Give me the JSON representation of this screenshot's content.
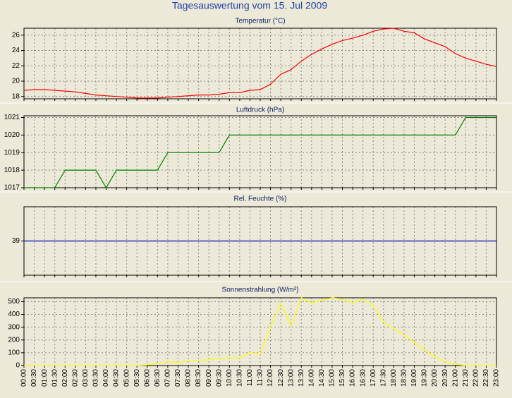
{
  "title": "Tagesauswertung vom 15. Jul 2009",
  "chart_data": [
    {
      "type": "line",
      "title": "Temperatur (°C)",
      "color": "#ff0000",
      "values": [
        18.8,
        18.9,
        18.9,
        18.8,
        18.7,
        18.6,
        18.4,
        18.2,
        18.1,
        18.0,
        17.9,
        17.8,
        17.8,
        17.8,
        17.9,
        18.0,
        18.1,
        18.2,
        18.2,
        18.3,
        18.5,
        18.5,
        18.8,
        18.9,
        19.6,
        20.9,
        21.5,
        22.6,
        23.5,
        24.2,
        24.8,
        25.3,
        25.6,
        26.0,
        26.5,
        26.8,
        26.9,
        26.5,
        26.3,
        25.5,
        25.0,
        24.5,
        23.6,
        23.0,
        22.6,
        22.2,
        21.9
      ],
      "ylim": [
        17.7,
        26.9
      ],
      "yticks": [
        18,
        20,
        22,
        24,
        26
      ],
      "grid": true
    },
    {
      "type": "line",
      "title": "Luftdruck (hPa)",
      "color": "#008000",
      "values": [
        1017,
        1017,
        1017,
        1017,
        1018,
        1018,
        1018,
        1018,
        1017,
        1018,
        1018,
        1018,
        1018,
        1018,
        1019,
        1019,
        1019,
        1019,
        1019,
        1019,
        1020,
        1020,
        1020,
        1020,
        1020,
        1020,
        1020,
        1020,
        1020,
        1020,
        1020,
        1020,
        1020,
        1020,
        1020,
        1020,
        1020,
        1020,
        1020,
        1020,
        1020,
        1020,
        1020,
        1021,
        1021,
        1021,
        1021
      ],
      "ylim": [
        1017,
        1021.1
      ],
      "yticks": [
        1017,
        1018,
        1019,
        1020,
        1021
      ],
      "grid": true
    },
    {
      "type": "line",
      "title": "Rel. Feuchte (%)",
      "color": "#0000c0",
      "values": [
        39,
        39,
        39,
        39,
        39,
        39,
        39,
        39,
        39,
        39,
        39,
        39,
        39,
        39,
        39,
        39,
        39,
        39,
        39,
        39,
        39,
        39,
        39,
        39,
        39,
        39,
        39,
        39,
        39,
        39,
        39,
        39,
        39,
        39,
        39,
        39,
        39,
        39,
        39,
        39,
        39,
        39,
        39,
        39,
        39,
        39,
        39
      ],
      "ylim": [
        38,
        40
      ],
      "yticks": [
        39
      ],
      "grid": true
    },
    {
      "type": "line",
      "title": "Sonnenstrahlung (W/m²)",
      "color": "#ffff00",
      "categories": [
        "00:00",
        "00:30",
        "01:00",
        "01:30",
        "02:00",
        "02:30",
        "03:00",
        "03:30",
        "04:00",
        "04:30",
        "05:00",
        "05:30",
        "06:00",
        "06:30",
        "07:00",
        "07:30",
        "08:00",
        "08:30",
        "09:00",
        "09:30",
        "10:00",
        "10:30",
        "11:00",
        "11:30",
        "12:00",
        "12:30",
        "13:00",
        "13:30",
        "14:00",
        "14:30",
        "15:00",
        "15:30",
        "16:00",
        "16:30",
        "17:00",
        "17:30",
        "18:00",
        "18:30",
        "19:00",
        "19:30",
        "20:00",
        "20:30",
        "21:00",
        "21:30",
        "22:00",
        "22:30",
        "23:00"
      ],
      "values": [
        0,
        0,
        0,
        0,
        0,
        0,
        0,
        0,
        0,
        0,
        0,
        0,
        5,
        15,
        30,
        25,
        35,
        40,
        45,
        55,
        60,
        60,
        100,
        90,
        300,
        490,
        310,
        530,
        490,
        510,
        530,
        520,
        490,
        520,
        470,
        340,
        290,
        240,
        180,
        120,
        70,
        30,
        10,
        0,
        0,
        0,
        0
      ],
      "ylim": [
        0,
        530
      ],
      "yticks": [
        0,
        100,
        200,
        300,
        400,
        500
      ],
      "grid": true
    }
  ]
}
